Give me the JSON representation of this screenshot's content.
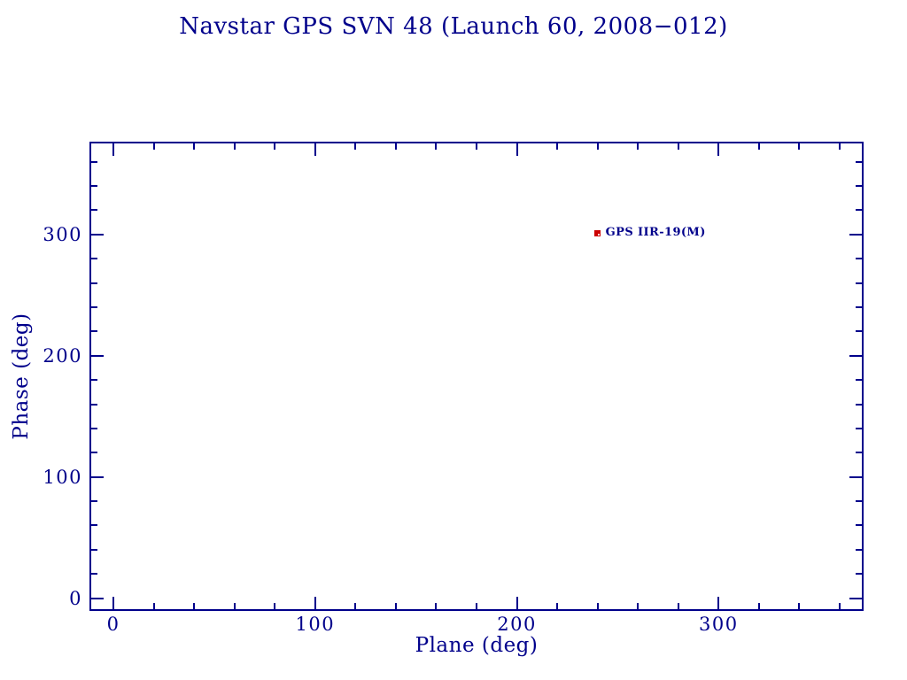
{
  "window": {
    "background": "#ffffff"
  },
  "chart_data": {
    "type": "scatter",
    "title": "Navstar GPS SVN 48 (Launch 60, 2008−012)",
    "xlabel": "Plane (deg)",
    "ylabel": "Phase (deg)",
    "xlim": [
      -11,
      371
    ],
    "ylim": [
      -9,
      375
    ],
    "x_major_ticks": [
      0,
      100,
      200,
      300
    ],
    "y_major_ticks": [
      0,
      100,
      200,
      300
    ],
    "minor_tick_step": 20,
    "grid": false,
    "legend_position": "none",
    "series": [
      {
        "name": "GPS IIR-19(M)",
        "marker": "filled-square",
        "color": "#cc0000",
        "points": [
          {
            "x": 240,
            "y": 301,
            "label": "GPS IIR-19(M)"
          }
        ]
      }
    ],
    "colors": {
      "axis": "#00008b",
      "text": "#00008b"
    }
  }
}
